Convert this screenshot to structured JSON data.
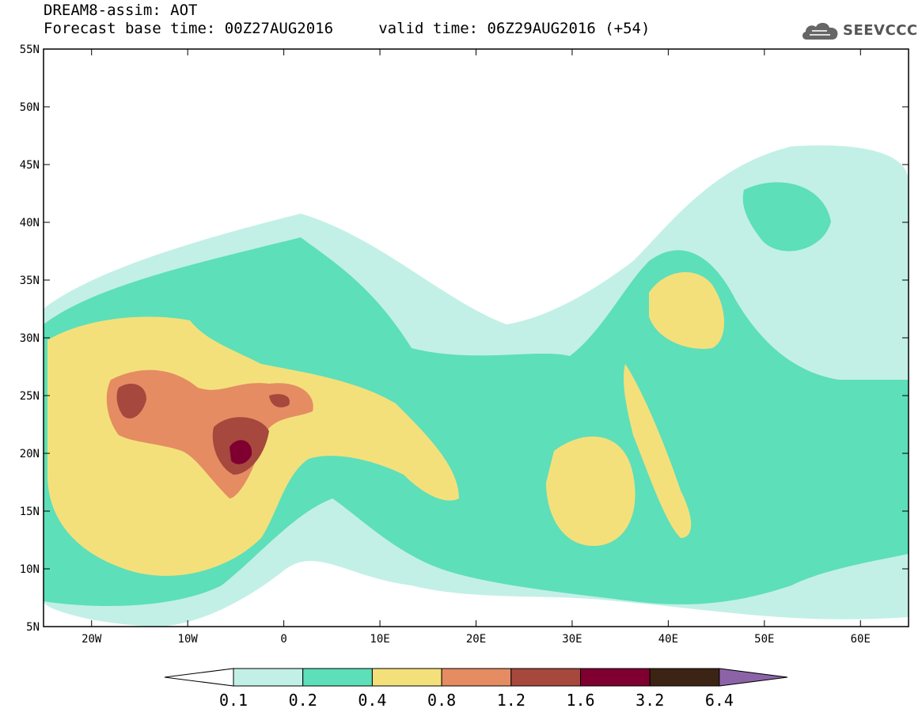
{
  "header": {
    "line1": "DREAM8-assim: AOT",
    "line2": "Forecast base time: 00Z27AUG2016     valid time: 06Z29AUG2016 (+54)"
  },
  "logo": {
    "text": "SEEVCCC",
    "icon": "cloud-icon"
  },
  "map": {
    "lon_range": [
      -25,
      65
    ],
    "lat_range": [
      5,
      55
    ],
    "x_ticks": [
      "20W",
      "10W",
      "0",
      "10E",
      "20E",
      "30E",
      "40E",
      "50E",
      "60E"
    ],
    "y_ticks": [
      "5N",
      "10N",
      "15N",
      "20N",
      "25N",
      "30N",
      "35N",
      "40N",
      "45N",
      "50N",
      "55N"
    ],
    "variable": "AOT"
  },
  "colorbar": {
    "levels": [
      "0.1",
      "0.2",
      "0.4",
      "0.8",
      "1.2",
      "1.6",
      "3.2",
      "6.4"
    ],
    "colors": [
      "#c2f0e6",
      "#5ddfb9",
      "#f4e07b",
      "#e58c63",
      "#a6483d",
      "#7f0030",
      "#3c2414",
      "#8d63a8"
    ],
    "under_color": "#ffffff"
  }
}
